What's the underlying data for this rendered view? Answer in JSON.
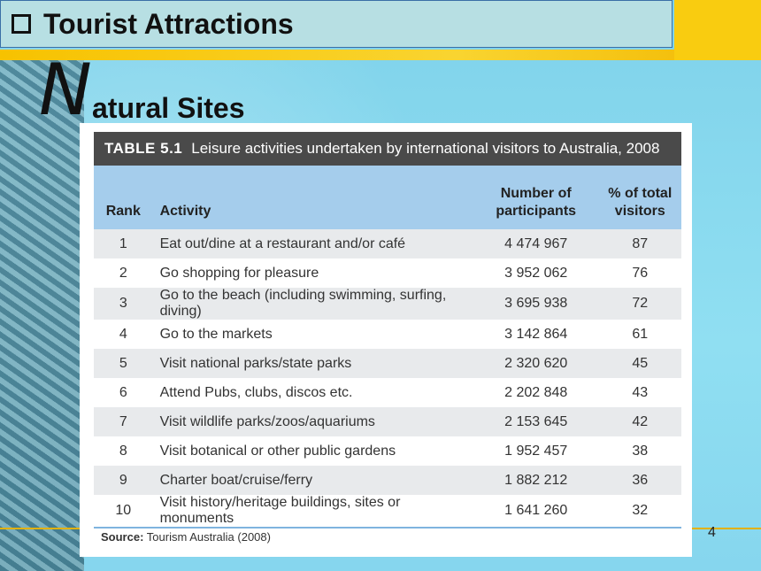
{
  "slide": {
    "title": "Tourist Attractions",
    "subtitle_initial": "N",
    "subtitle_rest": "atural Sites",
    "page_number": "4"
  },
  "table": {
    "caption_label": "TABLE 5.1",
    "caption_text": "Leisure activities undertaken by international visitors to Australia, 2008",
    "headers": {
      "rank": "Rank",
      "activity": "Activity",
      "participants_line1": "Number of",
      "participants_line2": "participants",
      "percent_line1": "% of total",
      "percent_line2": "visitors"
    },
    "rows": [
      {
        "rank": "1",
        "activity": "Eat out/dine at a restaurant and/or café",
        "participants": "4 474 967",
        "percent": "87"
      },
      {
        "rank": "2",
        "activity": "Go shopping for pleasure",
        "participants": "3 952 062",
        "percent": "76"
      },
      {
        "rank": "3",
        "activity": "Go to the beach (including swimming, surfing, diving)",
        "participants": "3 695 938",
        "percent": "72"
      },
      {
        "rank": "4",
        "activity": "Go to the markets",
        "participants": "3 142 864",
        "percent": "61"
      },
      {
        "rank": "5",
        "activity": "Visit national parks/state parks",
        "participants": "2 320 620",
        "percent": "45"
      },
      {
        "rank": "6",
        "activity": "Attend Pubs, clubs, discos etc.",
        "participants": "2 202 848",
        "percent": "43"
      },
      {
        "rank": "7",
        "activity": "Visit wildlife parks/zoos/aquariums",
        "participants": "2 153 645",
        "percent": "42"
      },
      {
        "rank": "8",
        "activity": "Visit botanical or other public gardens",
        "participants": "1 952 457",
        "percent": "38"
      },
      {
        "rank": "9",
        "activity": "Charter boat/cruise/ferry",
        "participants": "1 882 212",
        "percent": "36"
      },
      {
        "rank": "10",
        "activity": "Visit history/heritage buildings, sites or monuments",
        "participants": "1 641 260",
        "percent": "32"
      }
    ],
    "source_label": "Source:",
    "source_text": "Tourism Australia (2008)"
  }
}
